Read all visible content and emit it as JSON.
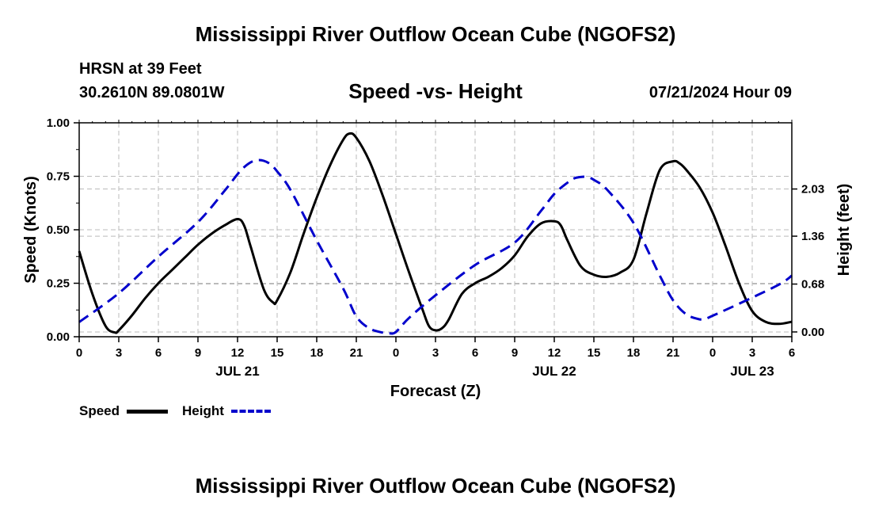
{
  "header": {
    "title": "Mississippi River Outflow Ocean Cube (NGOFS2)",
    "station": "HRSN at 39 Feet",
    "coords": "30.2610N  89.0801W",
    "subtitle": "Speed -vs- Height",
    "datetime": "07/21/2024 Hour 09"
  },
  "footer": {
    "title": "Mississippi River Outflow Ocean Cube (NGOFS2)"
  },
  "legend": {
    "speed_label": "Speed",
    "height_label": "Height",
    "speed_color": "#000000",
    "height_color": "#0000cc"
  },
  "chart_data": {
    "type": "line",
    "title": "Speed -vs- Height",
    "xlabel": "Forecast (Z)",
    "ylabel": "Speed (Knots)",
    "y2label": "Height (feet)",
    "x_unit": "hours since 2024-07-21 00Z",
    "xlim": [
      0,
      54
    ],
    "ylim": [
      0,
      1.0
    ],
    "y2lim": [
      -0.068,
      2.97
    ],
    "x_ticks": [
      0,
      3,
      6,
      9,
      12,
      15,
      18,
      21,
      24,
      27,
      30,
      33,
      36,
      39,
      42,
      45,
      48,
      51,
      54
    ],
    "x_tick_labels": [
      "0",
      "3",
      "6",
      "9",
      "12",
      "15",
      "18",
      "21",
      "0",
      "3",
      "6",
      "9",
      "12",
      "15",
      "18",
      "21",
      "0",
      "3",
      "6"
    ],
    "date_labels": [
      {
        "x": 12,
        "label": "JUL 21"
      },
      {
        "x": 36,
        "label": "JUL 22"
      },
      {
        "x": 51,
        "label": "JUL 23"
      }
    ],
    "y_ticks": [
      0,
      0.25,
      0.5,
      0.75,
      1.0
    ],
    "y_tick_labels": [
      "0.00",
      "0.25",
      "0.50",
      "0.75",
      "1.00"
    ],
    "y2_ticks": [
      0,
      0.68,
      1.36,
      2.03
    ],
    "y2_tick_labels": [
      "0.00",
      "0.68",
      "1.36",
      "2.03"
    ],
    "grid": true,
    "series": [
      {
        "name": "Speed",
        "axis": "left",
        "style": "solid",
        "color": "#000000",
        "x": [
          0,
          1,
          2,
          2.7,
          3,
          4,
          5,
          6,
          7,
          8,
          9,
          10,
          11,
          12,
          12.5,
          13,
          14,
          14.7,
          15,
          16,
          17,
          18,
          19,
          20,
          20.5,
          21,
          22,
          23,
          24,
          25,
          26,
          26.5,
          27,
          27.5,
          28,
          29,
          30,
          31,
          32,
          33,
          34,
          35,
          36,
          36.5,
          37,
          38,
          39,
          40,
          41,
          42,
          43,
          44,
          45,
          45.5,
          46,
          47,
          48,
          49,
          50,
          51,
          52,
          53,
          54
        ],
        "y": [
          0.4,
          0.2,
          0.05,
          0.02,
          0.03,
          0.1,
          0.18,
          0.25,
          0.31,
          0.37,
          0.43,
          0.48,
          0.52,
          0.55,
          0.52,
          0.42,
          0.22,
          0.16,
          0.17,
          0.3,
          0.48,
          0.65,
          0.8,
          0.92,
          0.95,
          0.93,
          0.82,
          0.66,
          0.48,
          0.3,
          0.13,
          0.05,
          0.03,
          0.04,
          0.08,
          0.2,
          0.25,
          0.28,
          0.32,
          0.38,
          0.47,
          0.53,
          0.54,
          0.52,
          0.45,
          0.33,
          0.29,
          0.28,
          0.3,
          0.36,
          0.58,
          0.78,
          0.82,
          0.81,
          0.78,
          0.7,
          0.58,
          0.42,
          0.25,
          0.12,
          0.07,
          0.06,
          0.07
        ]
      },
      {
        "name": "Height",
        "axis": "right",
        "style": "dashed",
        "color": "#0000cc",
        "x": [
          0,
          3,
          6,
          9,
          11,
          12,
          12.5,
          13,
          13.5,
          14,
          14.5,
          15,
          16,
          18,
          20,
          21,
          22,
          23,
          23.5,
          24,
          25,
          27,
          30,
          33,
          35,
          36,
          37,
          37.5,
          38,
          38.5,
          39,
          40,
          42,
          44,
          45,
          46,
          47,
          47.5,
          48,
          50,
          53,
          54
        ],
        "y": [
          0.14,
          0.55,
          1.07,
          1.56,
          2.0,
          2.24,
          2.34,
          2.41,
          2.44,
          2.43,
          2.38,
          2.28,
          2.02,
          1.3,
          0.62,
          0.22,
          0.05,
          -0.01,
          -0.02,
          0.0,
          0.2,
          0.52,
          0.95,
          1.27,
          1.72,
          1.96,
          2.12,
          2.18,
          2.2,
          2.2,
          2.16,
          2.02,
          1.55,
          0.8,
          0.45,
          0.25,
          0.18,
          0.19,
          0.23,
          0.4,
          0.67,
          0.8
        ]
      }
    ]
  }
}
